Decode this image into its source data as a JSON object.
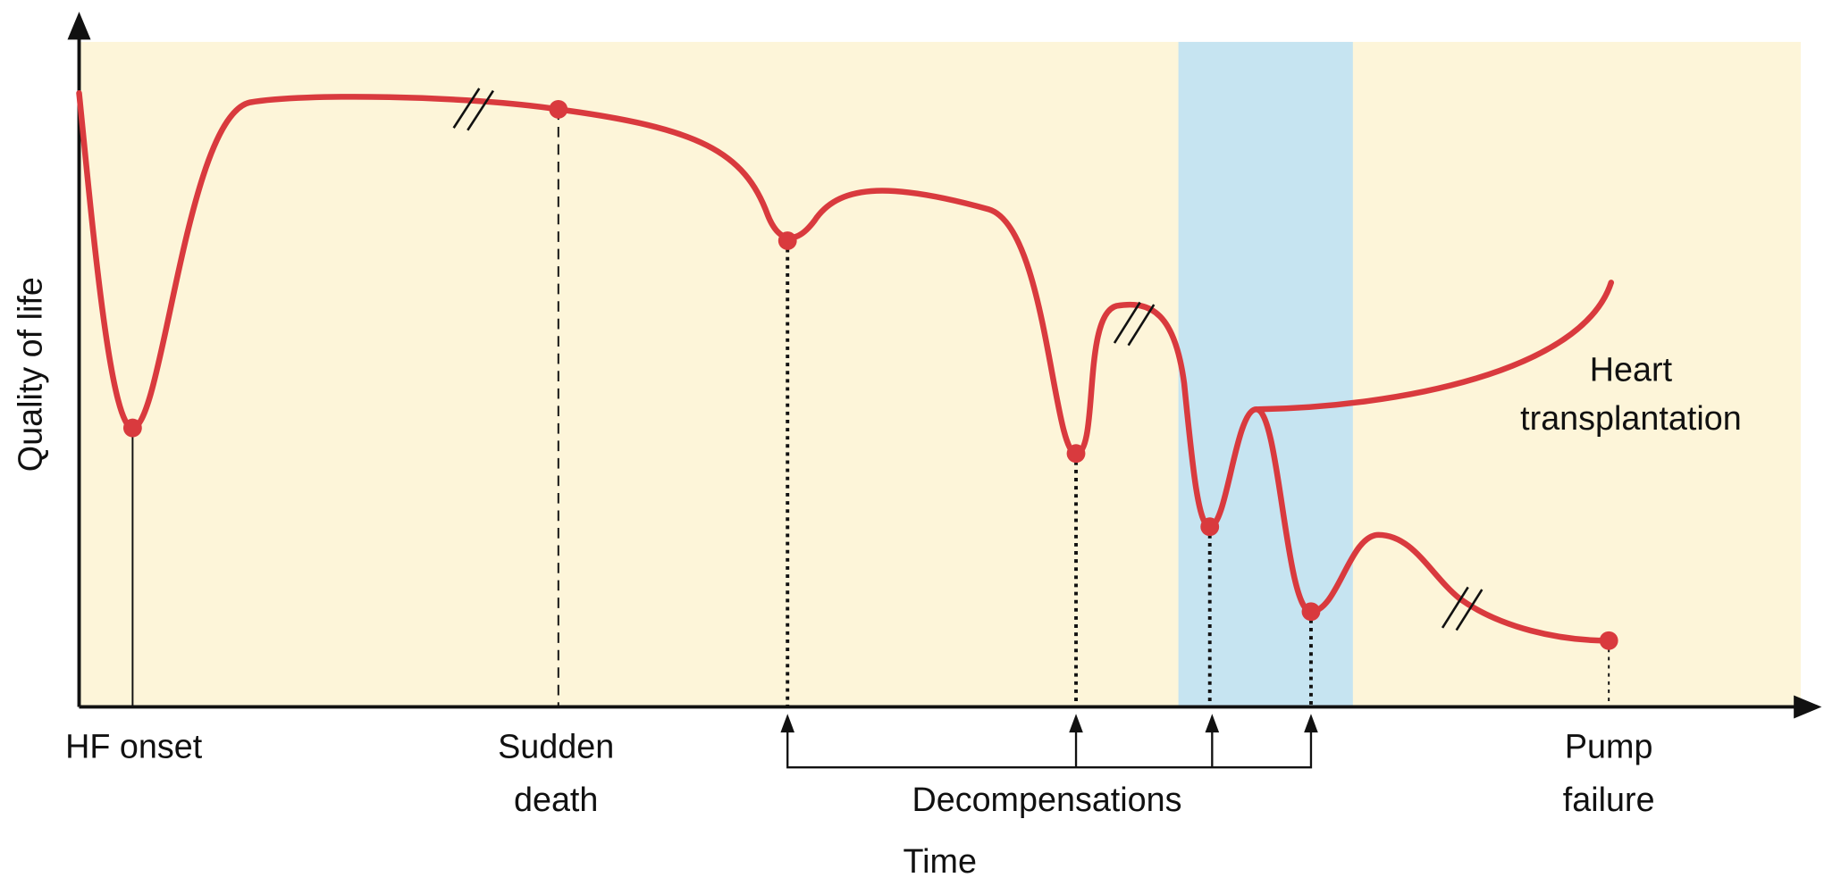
{
  "axes": {
    "y_label": "Quality of life",
    "x_label": "Time"
  },
  "events": {
    "hf_onset": "HF onset",
    "sudden_death": [
      "Sudden",
      "death"
    ],
    "decompensations": "Decompensations",
    "pump_failure": [
      "Pump",
      "failure"
    ]
  },
  "annotations": {
    "heart_transplantation": [
      "Heart",
      "transplantation"
    ]
  }
}
